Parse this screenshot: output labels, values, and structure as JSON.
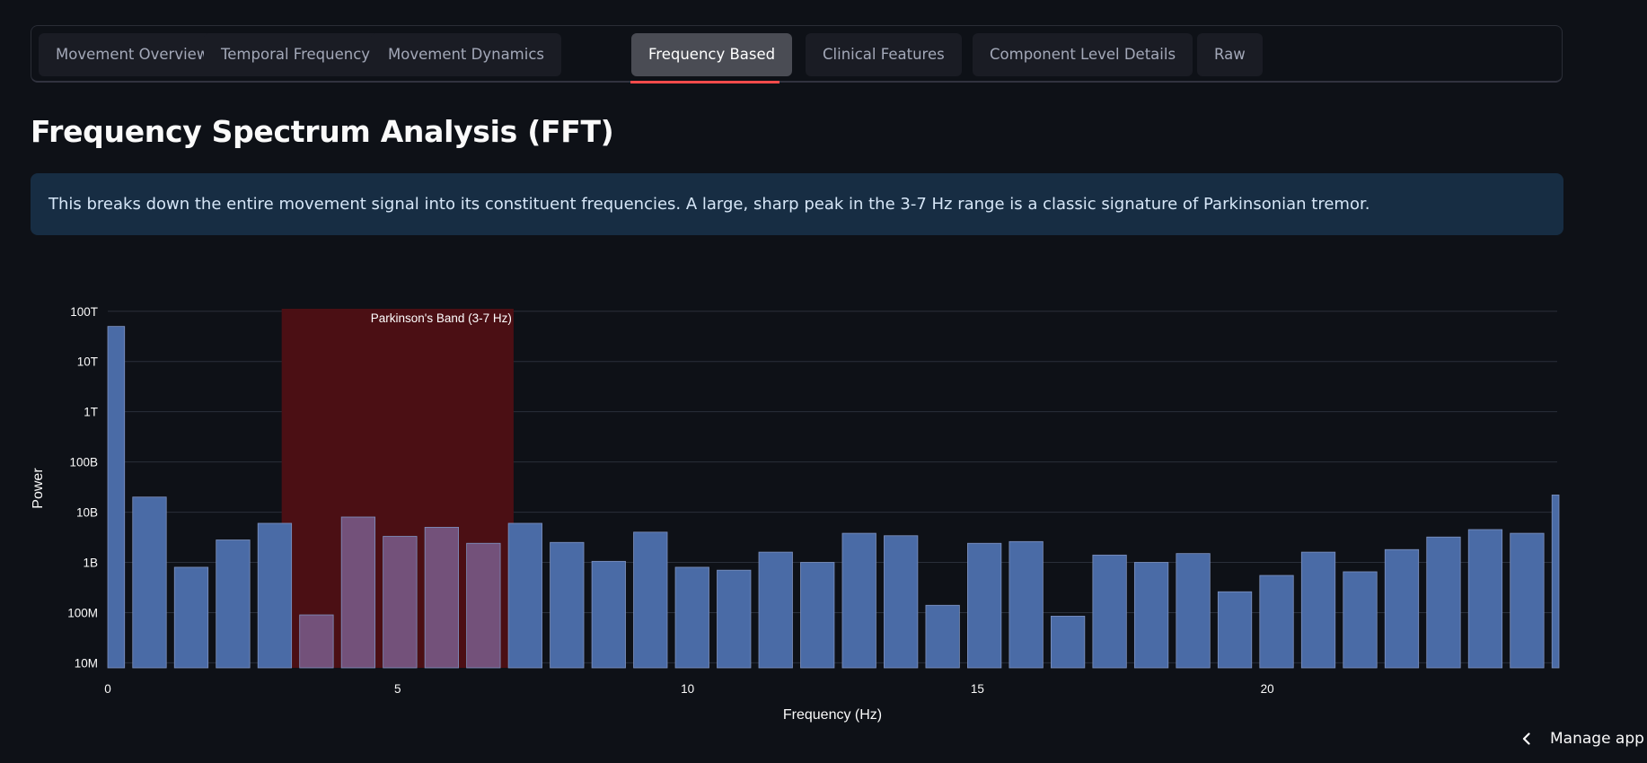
{
  "tabs": [
    {
      "label": "Movement Overview",
      "active": false
    },
    {
      "label": "Temporal Frequency",
      "active": false
    },
    {
      "label": "Movement Dynamics",
      "active": false
    },
    {
      "label": "Frequency Based",
      "active": true
    },
    {
      "label": "Clinical Features",
      "active": false
    },
    {
      "label": "Component Level Details",
      "active": false
    },
    {
      "label": "Raw",
      "active": false
    }
  ],
  "page": {
    "title": "Frequency Spectrum Analysis (FFT)",
    "info": "This breaks down the entire movement signal into its constituent frequencies. A large, sharp peak in the 3-7 Hz range is a classic signature of Parkinsonian tremor."
  },
  "footer": {
    "manage_label": "Manage app",
    "icon": "chevron-left-icon"
  },
  "colors": {
    "bar": "#4a6ba6",
    "band": "#4b0f14",
    "band_overlap_bar": "#73517a",
    "accent": "#ff4b4b"
  },
  "chart_data": {
    "type": "bar",
    "xlabel": "Frequency (Hz)",
    "ylabel": "Power",
    "yscale": "log",
    "xlim": [
      0,
      25
    ],
    "ylim_log10": [
      6.9,
      14.05
    ],
    "xticks": [
      0,
      5,
      10,
      15,
      20
    ],
    "xtick_labels": [
      "0",
      "5",
      "10",
      "15",
      "20"
    ],
    "yticks_log10": [
      7,
      8,
      9,
      10,
      11,
      12,
      13,
      14
    ],
    "ytick_labels": [
      "10M",
      "100M",
      "1B",
      "10B",
      "100B",
      "1T",
      "10T",
      "100T"
    ],
    "band": {
      "x0": 3,
      "x1": 7,
      "label": "Parkinson's Band (3-7 Hz)"
    },
    "bar_width_hz": 0.58,
    "x": [
      0,
      0.72,
      1.44,
      2.16,
      2.88,
      3.6,
      4.32,
      5.04,
      5.76,
      6.48,
      7.2,
      7.92,
      8.64,
      9.36,
      10.08,
      10.8,
      11.52,
      12.24,
      12.96,
      13.68,
      14.4,
      15.12,
      15.84,
      16.56,
      17.28,
      18.0,
      18.72,
      19.44,
      20.16,
      20.88,
      21.6,
      22.32,
      23.04,
      23.76,
      24.48,
      25.2
    ],
    "values": [
      50000000000000.0,
      20000000000.0,
      800000000.0,
      2800000000.0,
      6000000000.0,
      90000000.0,
      8000000000.0,
      3300000000.0,
      5000000000.0,
      2400000000.0,
      6000000000.0,
      2500000000.0,
      1050000000.0,
      4000000000.0,
      800000000.0,
      700000000.0,
      1600000000.0,
      1000000000.0,
      3800000000.0,
      3400000000.0,
      140000000.0,
      2400000000.0,
      2600000000.0,
      85000000.0,
      1400000000.0,
      1000000000.0,
      1500000000.0,
      260000000.0,
      550000000.0,
      1600000000.0,
      650000000.0,
      1800000000.0,
      3200000000.0,
      4500000000.0,
      3800000000.0,
      22000000000.0
    ]
  }
}
